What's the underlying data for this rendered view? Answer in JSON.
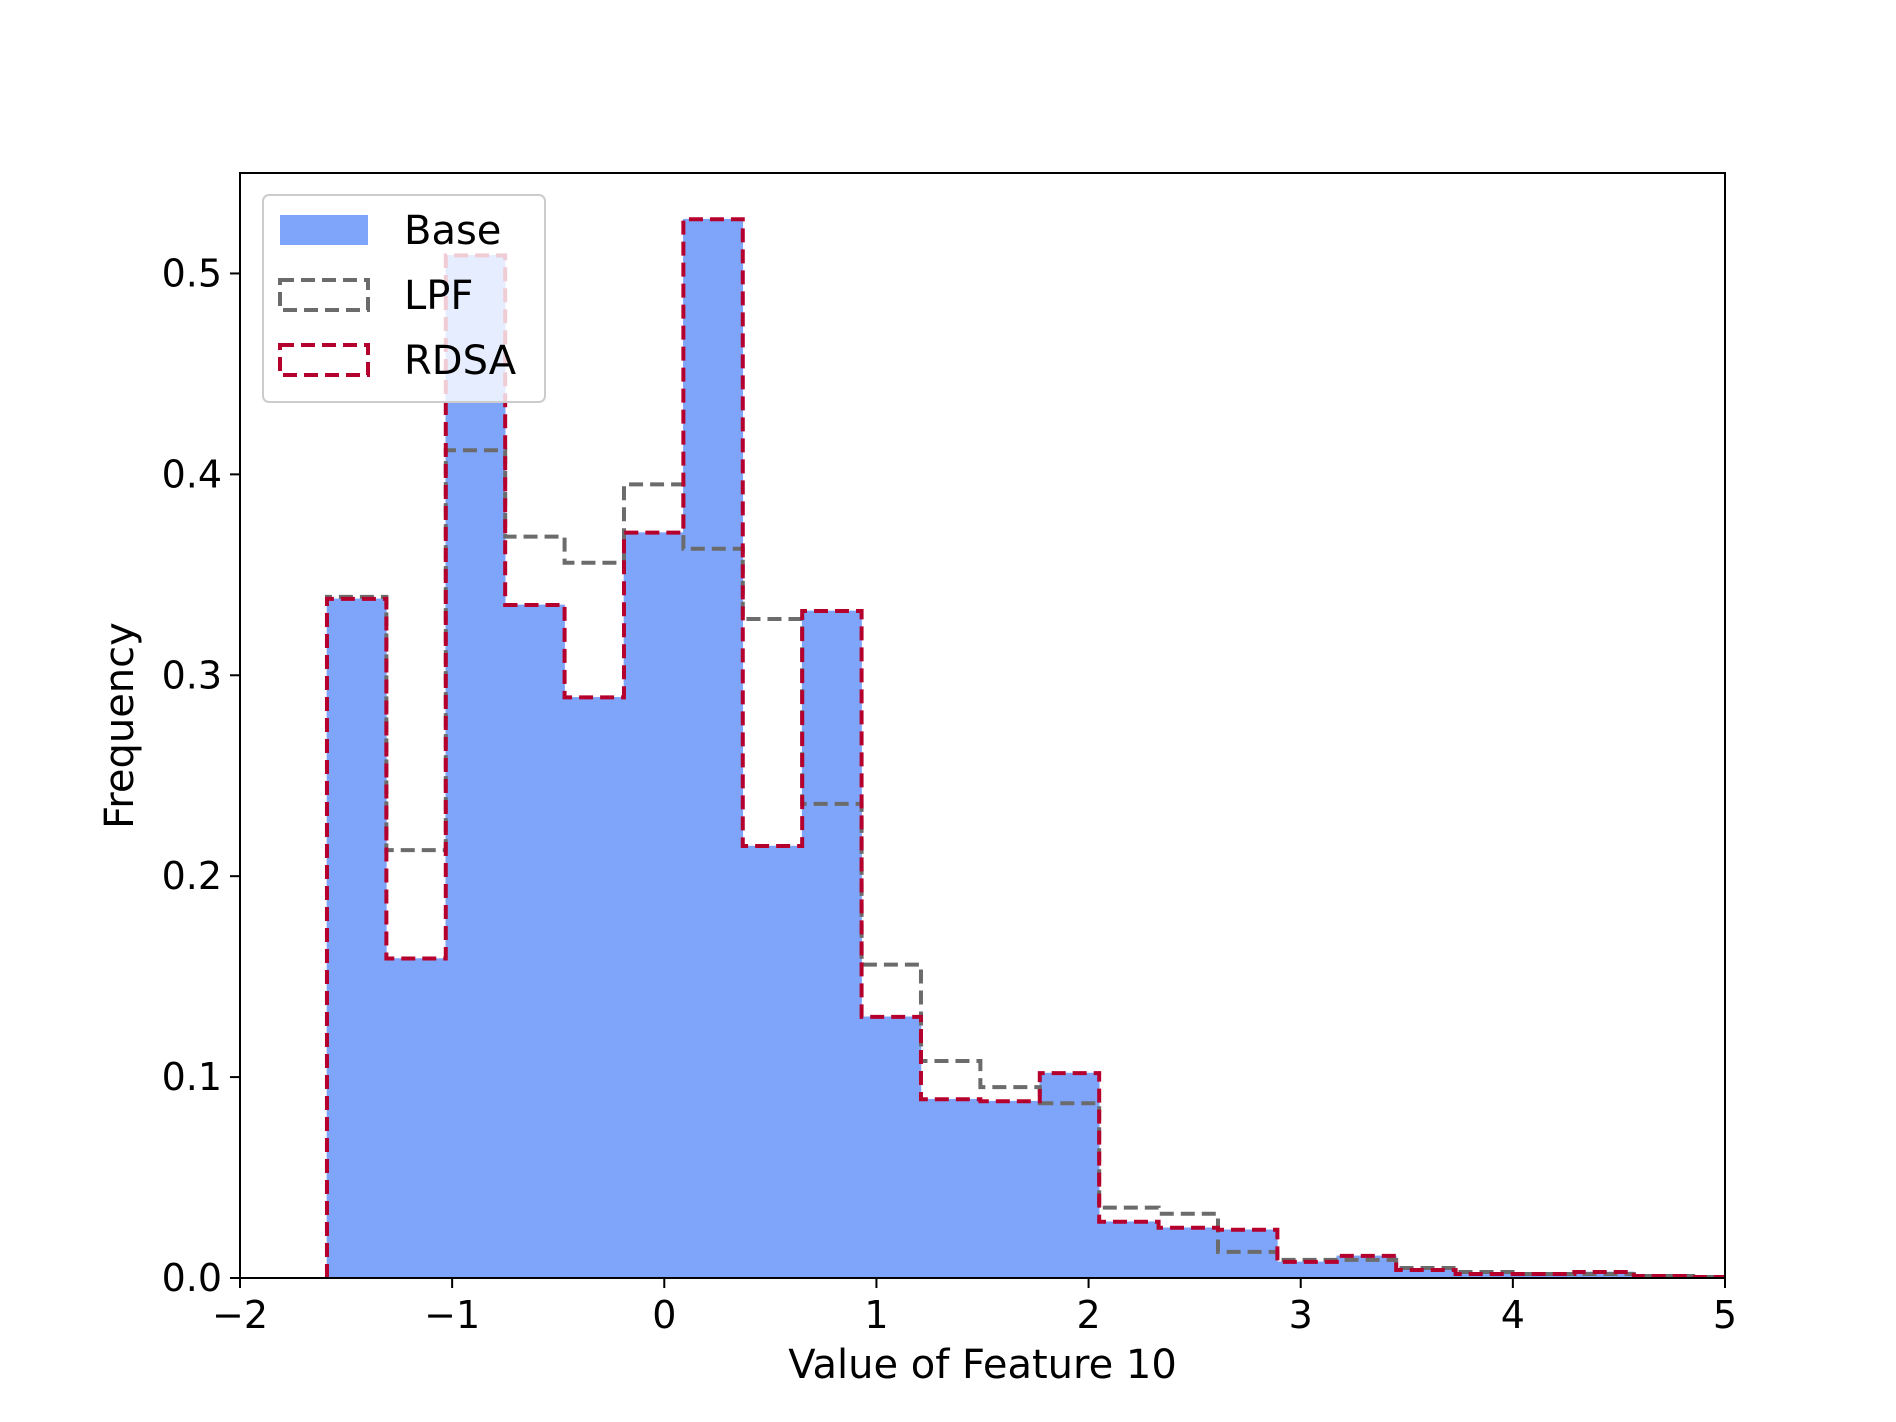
{
  "chart_data": {
    "type": "histogram",
    "title": "",
    "xlabel": "Value of Feature 10",
    "ylabel": "Frequency",
    "xlim": [
      -2,
      5
    ],
    "ylim": [
      0,
      0.55
    ],
    "xticks": [
      -2,
      -1,
      0,
      1,
      2,
      3,
      4,
      5
    ],
    "xtick_labels": [
      "−2",
      "−1",
      "0",
      "1",
      "2",
      "3",
      "4",
      "5"
    ],
    "yticks": [
      0.0,
      0.1,
      0.2,
      0.3,
      0.4,
      0.5
    ],
    "ytick_labels": [
      "0.0",
      "0.1",
      "0.2",
      "0.3",
      "0.4",
      "0.5"
    ],
    "legend_position": "top-left",
    "bin_edges": [
      -1.59,
      -1.31,
      -1.03,
      -0.75,
      -0.47,
      -0.19,
      0.09,
      0.37,
      0.65,
      0.93,
      1.21,
      1.49,
      1.77,
      2.05,
      2.33,
      2.61,
      2.89,
      3.17,
      3.45,
      3.73,
      4.01,
      4.29,
      4.57,
      4.85,
      5.13
    ],
    "series": [
      {
        "name": "Base",
        "style": "filled",
        "color": "#7fa5fb",
        "values": [
          0.338,
          0.159,
          0.509,
          0.335,
          0.289,
          0.371,
          0.527,
          0.215,
          0.332,
          0.13,
          0.089,
          0.088,
          0.102,
          0.028,
          0.025,
          0.024,
          0.008,
          0.011,
          0.004,
          0.002,
          0.002,
          0.003,
          0.001,
          0.0005
        ]
      },
      {
        "name": "LPF",
        "style": "dashed-step",
        "color": "#6b6b6b",
        "values": [
          0.339,
          0.213,
          0.412,
          0.369,
          0.356,
          0.395,
          0.363,
          0.328,
          0.236,
          0.156,
          0.108,
          0.095,
          0.087,
          0.035,
          0.032,
          0.013,
          0.009,
          0.009,
          0.005,
          0.003,
          0.002,
          0.002,
          0.001,
          0.0005
        ]
      },
      {
        "name": "RDSA",
        "style": "dashed-step",
        "color": "#b5002e",
        "values": [
          0.338,
          0.159,
          0.509,
          0.335,
          0.289,
          0.371,
          0.527,
          0.215,
          0.332,
          0.13,
          0.089,
          0.088,
          0.102,
          0.028,
          0.025,
          0.024,
          0.008,
          0.011,
          0.004,
          0.002,
          0.002,
          0.003,
          0.001,
          0.0005
        ]
      }
    ]
  }
}
